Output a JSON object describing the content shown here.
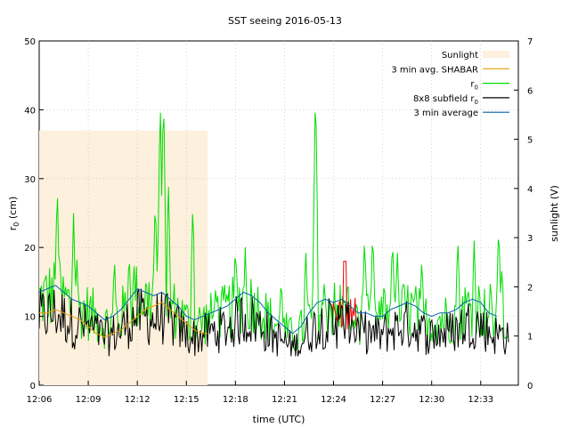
{
  "chart_data": {
    "type": "line",
    "title": "SST seeing 2016-05-13",
    "xlabel": "time (UTC)",
    "ylabel_left": "r",
    "ylabel_left_sub": "0",
    "ylabel_left_unit": " (cm)",
    "ylabel_right": "sunlight (V)",
    "x_ticks": [
      "12:06",
      "12:09",
      "12:12",
      "12:15",
      "12:18",
      "12:21",
      "12:24",
      "12:27",
      "12:30",
      "12:33"
    ],
    "x_range_minutes": [
      0,
      29.3
    ],
    "ylim_left": [
      0,
      50
    ],
    "yticks_left": [
      0,
      10,
      20,
      30,
      40,
      50
    ],
    "ylim_right": [
      0,
      7
    ],
    "yticks_right": [
      0,
      1,
      2,
      3,
      4,
      5,
      6,
      7
    ],
    "grid": true,
    "legend_position": "top-right",
    "legend": [
      {
        "label": "Sunlight",
        "sub": "",
        "color": "#fdf0dc",
        "kind": "box"
      },
      {
        "label": "3 min avg. SHABAR",
        "sub": "",
        "color": "#e8a000",
        "kind": "line"
      },
      {
        "label": "r",
        "sub": "0",
        "color": "#00dd00",
        "kind": "line"
      },
      {
        "label": "8x8 subfield r",
        "sub": "0",
        "color": "#000000",
        "kind": "line"
      },
      {
        "label": "3 min average",
        "sub": "",
        "color": "#0060ad",
        "kind": "line"
      }
    ],
    "sunlight": {
      "x_start_min": 0,
      "x_end_min": 10.3,
      "value_V": 5.18
    },
    "series": [
      {
        "name": "3 min average",
        "color": "#0060ad",
        "x_min": [
          0,
          0.5,
          1,
          1.5,
          2,
          2.5,
          3,
          3.5,
          4,
          4.5,
          5,
          5.5,
          6,
          6.5,
          7,
          7.5,
          8,
          8.5,
          9,
          9.5,
          10,
          10.5,
          11,
          11.5,
          12,
          12.5,
          13,
          13.5,
          14,
          14.5,
          15,
          15.5,
          16,
          16.5,
          17,
          17.5,
          18,
          18.5,
          19,
          19.5,
          20,
          20.5,
          21,
          21.5,
          22,
          22.5,
          23,
          23.5,
          24,
          24.5,
          25,
          25.5,
          26,
          26.5,
          27,
          27.5,
          28
        ],
        "y": [
          13.5,
          14,
          14.5,
          13.5,
          12.5,
          12,
          11.5,
          10.5,
          9.5,
          10,
          11,
          12.5,
          14,
          13.5,
          13,
          13.5,
          12.5,
          11.5,
          10,
          9.5,
          10,
          10.5,
          11,
          11.5,
          12.5,
          13.5,
          13,
          12,
          10.5,
          9.5,
          8.5,
          7.5,
          8.5,
          10.5,
          12,
          12.5,
          12,
          12.5,
          11.5,
          10.5,
          10.5,
          10,
          10,
          11,
          11.5,
          12,
          11.5,
          10.5,
          10,
          10.5,
          10.5,
          11,
          12,
          12.5,
          12,
          10.5,
          10
        ]
      },
      {
        "name": "3 min avg. SHABAR",
        "color": "#e8a000",
        "x_min": [
          0,
          0.5,
          1,
          1.5,
          2,
          2.5,
          3,
          3.5,
          4,
          4.5,
          5,
          5.5,
          6,
          6.5,
          7,
          7.5,
          8,
          8.5,
          9,
          9.5,
          10,
          10.3
        ],
        "y": [
          10.5,
          10.5,
          11,
          10.5,
          10,
          9.5,
          8.5,
          7.5,
          7,
          7.5,
          8,
          9,
          10,
          11,
          11.5,
          12,
          11,
          10,
          9,
          8,
          7.5,
          7.5
        ]
      }
    ]
  }
}
